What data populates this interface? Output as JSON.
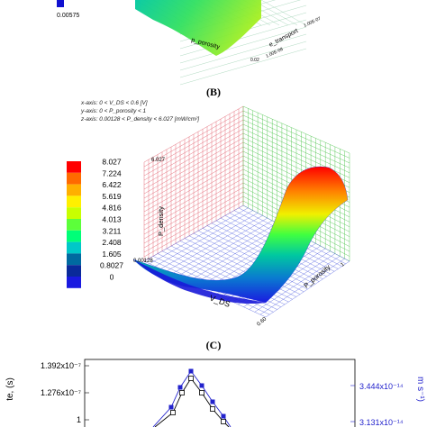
{
  "panelA": {
    "legend_value": "0.00575",
    "legend_color": "#1010d0",
    "xlabel": "p_porosity",
    "ylabel": "e_transport",
    "tick_near": "0.02",
    "tick_x_end": "1.00E-08",
    "tick_y_end": "1.00E-07"
  },
  "panelB": {
    "label": "(B)",
    "info": {
      "x_axis": "x-axis: 0 < V_DS < 0.6 [V]",
      "y_axis": "y-axis: 0 < P_porosity < 1",
      "z_axis": "z-axis: 0.00128 < P_density < 6.027 [mW/cm²]"
    },
    "colorbar": {
      "labels": [
        "8.027",
        "7.224",
        "6.422",
        "5.619",
        "4.816",
        "4.013",
        "3.211",
        "2.408",
        "1.605",
        "0.8027",
        "0"
      ],
      "colors": [
        "#ff0000",
        "#ff6a00",
        "#ffb000",
        "#fff000",
        "#c8ff00",
        "#5cff3a",
        "#00ff78",
        "#00c8c8",
        "#006aa0",
        "#0a2a9a",
        "#1a1ae0"
      ]
    },
    "z_tick_top": "6.027",
    "z_tick_bottom": "0.00128",
    "zlabel": "P_density",
    "xlabel": "V_DS",
    "ylabel": "P_porosity",
    "tick_x_end": "0.60",
    "tick_y_end": "1"
  },
  "panelC": {
    "label": "(C)",
    "left_axis_ticks": [
      "1.392x10⁻⁷",
      "1.276x10⁻⁷"
    ],
    "left_axis_label": "te, (s)",
    "right_axis_ticks": [
      "3.444x10⁻¹⁴",
      "3.131x10⁻¹⁴"
    ],
    "right_axis_label": "m s⁻¹)",
    "right_axis_color": "#2222cc"
  },
  "chart_data": [
    {
      "type": "surface",
      "title": "",
      "xlabel": "p_porosity",
      "ylabel": "e_transport",
      "zlabel": "",
      "colorbar_visible": [
        "0.00575"
      ]
    },
    {
      "type": "surface",
      "title": "",
      "xlabel": "V_DS",
      "ylabel": "P_porosity",
      "zlabel": "P_density",
      "xlim": [
        0,
        0.6
      ],
      "ylim": [
        0,
        1
      ],
      "zlim": [
        0.00128,
        6.027
      ],
      "colorbar": [
        0,
        0.8027,
        1.605,
        2.408,
        3.211,
        4.013,
        4.816,
        5.619,
        6.422,
        7.224,
        8.027
      ]
    },
    {
      "type": "line",
      "title": "",
      "ylabel": "te, (s)",
      "y2label": "m s⁻¹)",
      "yticks": [
        1.276e-07,
        1.392e-07
      ],
      "y2ticks": [
        3.131e-14,
        3.444e-14
      ],
      "series": [
        {
          "color": "#2222cc",
          "marker": "square-filled"
        },
        {
          "color": "#000000",
          "marker": "square-open"
        }
      ]
    }
  ]
}
